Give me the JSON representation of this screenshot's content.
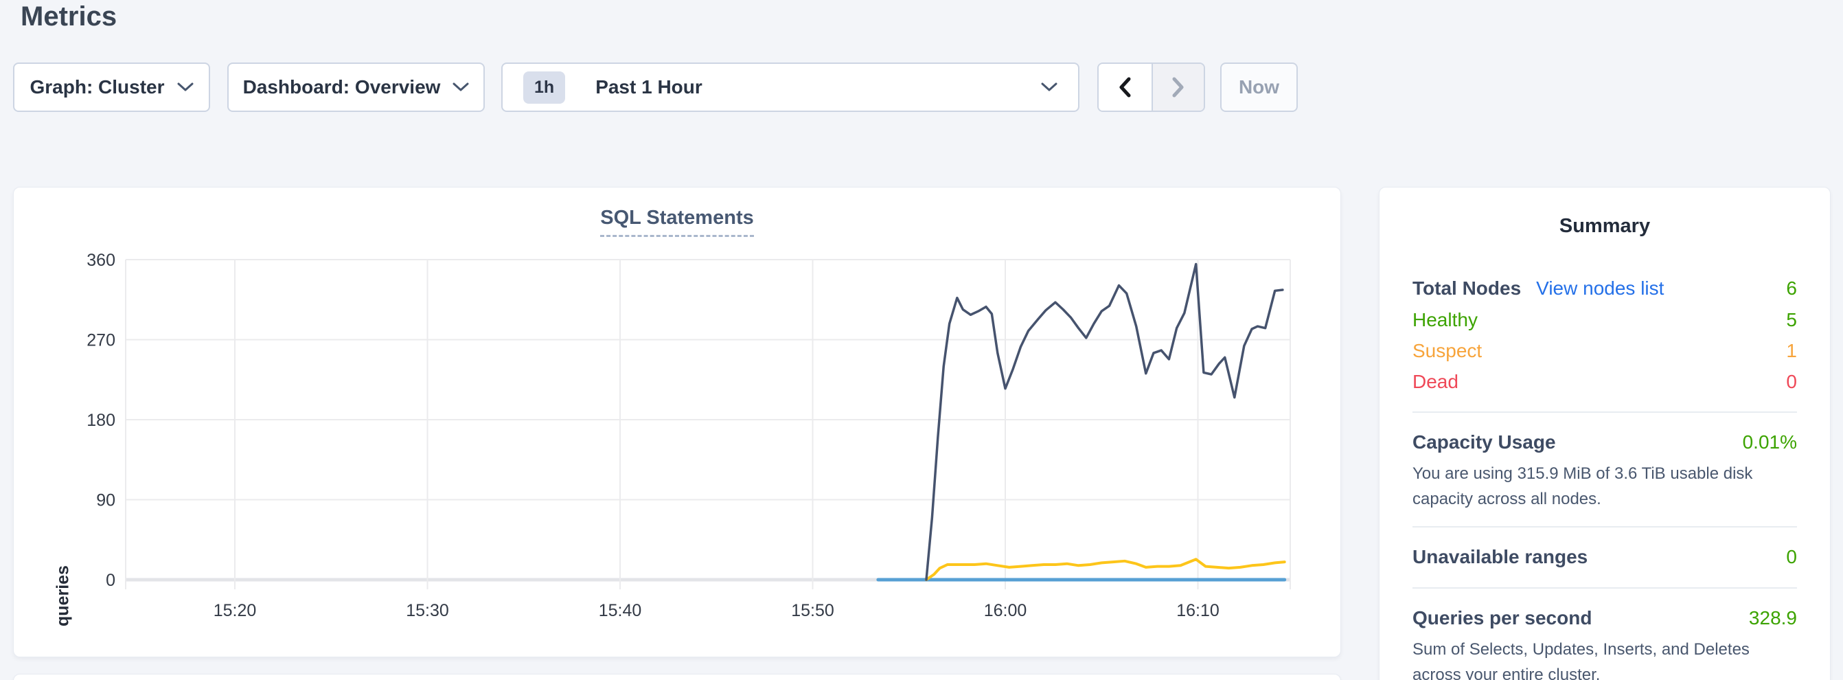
{
  "page": {
    "title": "Metrics"
  },
  "controls": {
    "graph_dropdown_label": "Graph: Cluster",
    "dashboard_dropdown_label": "Dashboard: Overview",
    "time_range_badge": "1h",
    "time_range_label": "Past 1 Hour",
    "now_button_label": "Now"
  },
  "colors": {
    "accent_link_blue": "#2470e8",
    "status_green": "#3ca300",
    "status_orange": "#f7a43b",
    "status_red": "#ef4857",
    "line_dark_blue": "#46536e",
    "line_yellow": "#fdc51a",
    "line_light_blue": "#57a0d4"
  },
  "chart_data": {
    "type": "line",
    "title": "SQL Statements",
    "ylabel": "queries",
    "xlabel": "",
    "grid": true,
    "legend_position": "none",
    "ylim": [
      0,
      360
    ],
    "y_ticks": [
      0,
      90,
      180,
      270,
      360
    ],
    "x_unit": "minutes after 15:20",
    "xlim_minutes": [
      -5.7,
      54.8
    ],
    "x_ticks": [
      {
        "min": 0,
        "label": "15:20"
      },
      {
        "min": 10,
        "label": "15:30"
      },
      {
        "min": 20,
        "label": "15:40"
      },
      {
        "min": 30,
        "label": "15:50"
      },
      {
        "min": 40,
        "label": "16:00"
      },
      {
        "min": 50,
        "label": "16:10"
      }
    ],
    "series": [
      {
        "name": "light-blue-series",
        "color": "#57a0d4",
        "width": 5,
        "points": [
          [
            33.4,
            0
          ],
          [
            54.5,
            0
          ]
        ]
      },
      {
        "name": "yellow-series",
        "color": "#fdc51a",
        "width": 4,
        "points": [
          [
            35.9,
            0
          ],
          [
            36.3,
            6
          ],
          [
            36.6,
            13
          ],
          [
            37.0,
            17
          ],
          [
            37.8,
            17
          ],
          [
            38.4,
            17
          ],
          [
            39.0,
            18
          ],
          [
            39.6,
            16
          ],
          [
            40.2,
            14
          ],
          [
            40.8,
            15
          ],
          [
            41.4,
            16
          ],
          [
            42.0,
            17
          ],
          [
            42.6,
            17
          ],
          [
            43.2,
            18
          ],
          [
            43.8,
            16
          ],
          [
            44.4,
            17
          ],
          [
            45.0,
            19
          ],
          [
            45.6,
            20
          ],
          [
            46.2,
            21
          ],
          [
            46.8,
            18
          ],
          [
            47.3,
            14
          ],
          [
            47.9,
            15
          ],
          [
            48.5,
            15
          ],
          [
            49.1,
            16
          ],
          [
            49.9,
            23
          ],
          [
            50.4,
            15
          ],
          [
            51.0,
            14
          ],
          [
            51.6,
            13
          ],
          [
            52.2,
            14
          ],
          [
            52.8,
            16
          ],
          [
            53.4,
            17
          ],
          [
            54.0,
            19
          ],
          [
            54.5,
            20
          ]
        ]
      },
      {
        "name": "dark-blue-series",
        "color": "#46536e",
        "width": 3.5,
        "points": [
          [
            35.9,
            0
          ],
          [
            36.2,
            70
          ],
          [
            36.5,
            160
          ],
          [
            36.8,
            240
          ],
          [
            37.1,
            288
          ],
          [
            37.5,
            317
          ],
          [
            37.8,
            304
          ],
          [
            38.2,
            298
          ],
          [
            38.6,
            302
          ],
          [
            39.0,
            307
          ],
          [
            39.3,
            299
          ],
          [
            39.6,
            255
          ],
          [
            40.0,
            215
          ],
          [
            40.4,
            237
          ],
          [
            40.8,
            262
          ],
          [
            41.2,
            280
          ],
          [
            41.7,
            293
          ],
          [
            42.1,
            303
          ],
          [
            42.6,
            312
          ],
          [
            43.0,
            304
          ],
          [
            43.4,
            295
          ],
          [
            43.8,
            283
          ],
          [
            44.2,
            272
          ],
          [
            44.6,
            288
          ],
          [
            45.0,
            302
          ],
          [
            45.4,
            308
          ],
          [
            45.9,
            331
          ],
          [
            46.3,
            322
          ],
          [
            46.8,
            285
          ],
          [
            47.3,
            232
          ],
          [
            47.7,
            255
          ],
          [
            48.1,
            258
          ],
          [
            48.5,
            248
          ],
          [
            48.9,
            283
          ],
          [
            49.3,
            300
          ],
          [
            49.9,
            355
          ],
          [
            50.3,
            233
          ],
          [
            50.7,
            231
          ],
          [
            51.1,
            243
          ],
          [
            51.4,
            250
          ],
          [
            51.9,
            205
          ],
          [
            52.4,
            263
          ],
          [
            52.8,
            282
          ],
          [
            53.1,
            285
          ],
          [
            53.5,
            283
          ],
          [
            54.0,
            325
          ],
          [
            54.4,
            326
          ]
        ]
      }
    ]
  },
  "summary": {
    "title": "Summary",
    "total_nodes_label": "Total Nodes",
    "view_nodes_link": "View nodes list",
    "total_nodes_value": "6",
    "healthy_label": "Healthy",
    "healthy_value": "5",
    "suspect_label": "Suspect",
    "suspect_value": "1",
    "dead_label": "Dead",
    "dead_value": "0",
    "capacity_label": "Capacity Usage",
    "capacity_value": "0.01%",
    "capacity_desc": "You are using 315.9 MiB of 3.6 TiB usable disk capacity across all nodes.",
    "unavailable_label": "Unavailable ranges",
    "unavailable_value": "0",
    "qps_label": "Queries per second",
    "qps_value": "328.9",
    "qps_desc": "Sum of Selects, Updates, Inserts, and Deletes across your entire cluster."
  }
}
